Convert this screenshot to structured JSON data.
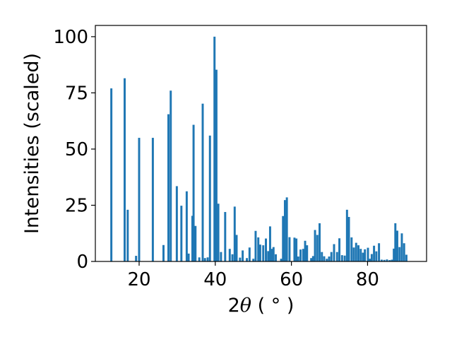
{
  "chart_data": {
    "type": "bar",
    "title": "",
    "xlabel_prefix": "2",
    "xlabel_symbol": "θ",
    "xlabel_suffix": " ( ° )",
    "ylabel": "Intensities (scaled)",
    "xlim": [
      8.5,
      95.5
    ],
    "ylim": [
      0,
      105
    ],
    "xticks": [
      20,
      40,
      60,
      80
    ],
    "yticks": [
      0,
      25,
      50,
      75,
      100
    ],
    "grid": false,
    "legend": "none",
    "bar_color": "#1f77b4",
    "x": [
      12.7,
      16.2,
      17.0,
      19.2,
      20.0,
      23.6,
      26.4,
      27.7,
      28.3,
      29.9,
      31.1,
      32.5,
      33.0,
      34.0,
      34.3,
      34.8,
      35.8,
      36.7,
      37.3,
      38.0,
      38.6,
      39.8,
      40.3,
      40.8,
      41.5,
      42.6,
      43.8,
      44.5,
      45.1,
      45.6,
      46.5,
      47.2,
      48.3,
      49.0,
      50.0,
      50.6,
      51.3,
      51.8,
      52.6,
      53.3,
      53.9,
      54.4,
      54.8,
      55.3,
      55.9,
      57.3,
      57.8,
      58.3,
      58.8,
      59.5,
      60.8,
      61.3,
      61.8,
      62.4,
      63.1,
      63.6,
      64.1,
      65.2,
      65.7,
      66.2,
      66.8,
      67.4,
      68.0,
      68.6,
      69.3,
      69.9,
      70.5,
      71.2,
      72.0,
      72.6,
      73.3,
      74.0,
      74.6,
      75.1,
      75.8,
      76.4,
      77.0,
      77.6,
      78.2,
      78.8,
      79.3,
      80.1,
      80.6,
      81.1,
      81.7,
      82.3,
      83.0,
      83.7,
      84.4,
      85.1,
      85.8,
      86.4,
      86.9,
      87.3,
      87.8,
      88.4,
      89.0,
      89.6,
      90.2
    ],
    "values": [
      77,
      81.5,
      23,
      2.5,
      55,
      55,
      7.3,
      65.5,
      76,
      33.5,
      24.8,
      31.2,
      3.5,
      20.3,
      60.8,
      15.8,
      1.8,
      70.2,
      1.5,
      1.8,
      56,
      100,
      85.3,
      25.7,
      4.2,
      22,
      5.6,
      3.2,
      24.4,
      11.8,
      1.7,
      4.9,
      1.5,
      6.2,
      1.2,
      13.6,
      10.7,
      7.5,
      7.2,
      10.2,
      4.6,
      15.6,
      5.6,
      6.4,
      3.2,
      1.2,
      20.2,
      27.3,
      28.5,
      10.8,
      10.6,
      10.2,
      2.2,
      5.3,
      5.6,
      9.2,
      7.2,
      1.5,
      2.4,
      14,
      11.8,
      17,
      4.2,
      2.3,
      1.2,
      2.2,
      4.2,
      7.7,
      4.2,
      10.3,
      2.8,
      2.6,
      23,
      19.8,
      10.7,
      6.2,
      8.3,
      7.2,
      5.6,
      3.9,
      5.4,
      6.1,
      1.2,
      3.3,
      7,
      4.5,
      8.1,
      0.8,
      0.7,
      0.9,
      0.6,
      0.8,
      5.7,
      17,
      13.7,
      6.4,
      12.5,
      8.1,
      3
    ]
  }
}
